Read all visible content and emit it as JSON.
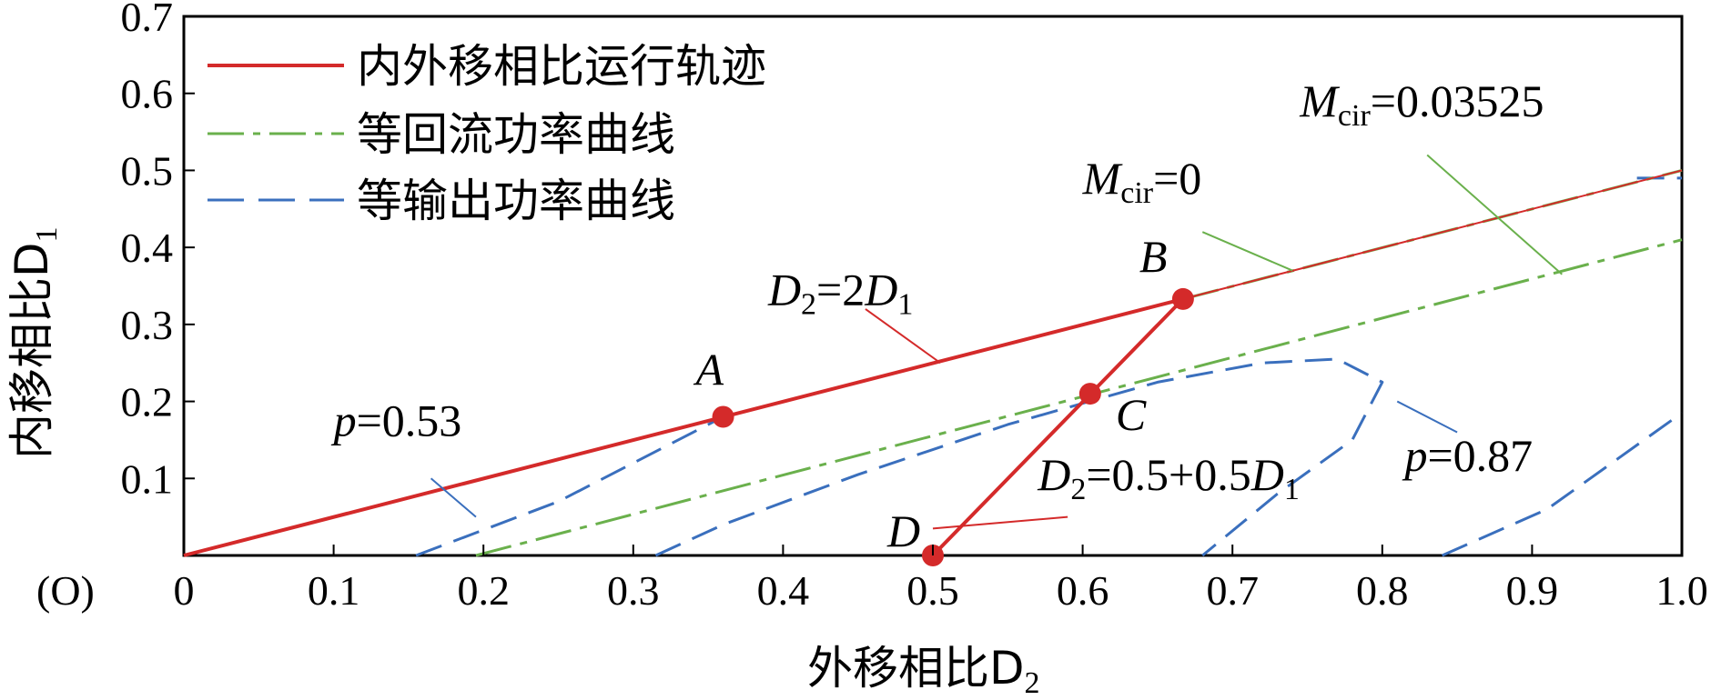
{
  "chart_data": {
    "type": "line",
    "title": "",
    "xlabel": "外移相比D",
    "xlabel_sub": "2",
    "ylabel": "内移相比D",
    "ylabel_sub": "1",
    "origin_label": "(O)",
    "xlim": [
      0,
      1.0
    ],
    "ylim": [
      0,
      0.7
    ],
    "grid": false,
    "legend_position": "top-left",
    "xticks": [
      {
        "value": 0,
        "label": "0"
      },
      {
        "value": 0.1,
        "label": "0.1"
      },
      {
        "value": 0.2,
        "label": "0.2"
      },
      {
        "value": 0.3,
        "label": "0.3"
      },
      {
        "value": 0.4,
        "label": "0.4"
      },
      {
        "value": 0.5,
        "label": "0.5"
      },
      {
        "value": 0.6,
        "label": "0.6"
      },
      {
        "value": 0.7,
        "label": "0.7"
      },
      {
        "value": 0.8,
        "label": "0.8"
      },
      {
        "value": 0.9,
        "label": "0.9"
      },
      {
        "value": 1.0,
        "label": "1.0"
      }
    ],
    "yticks": [
      {
        "value": 0.1,
        "label": "0.1"
      },
      {
        "value": 0.2,
        "label": "0.2"
      },
      {
        "value": 0.3,
        "label": "0.3"
      },
      {
        "value": 0.4,
        "label": "0.4"
      },
      {
        "value": 0.5,
        "label": "0.5"
      },
      {
        "value": 0.6,
        "label": "0.6"
      },
      {
        "value": 0.7,
        "label": "0.7"
      }
    ],
    "colors": {
      "red": "#d42a2a",
      "green": "#6ab04c",
      "blue": "#3a6fbd"
    },
    "legend": [
      {
        "label": "内外移相比运行轨迹",
        "style": "solid",
        "color": "#d42a2a"
      },
      {
        "label": "等回流功率曲线",
        "style": "dashdot",
        "color": "#6ab04c"
      },
      {
        "label": "等输出功率曲线",
        "style": "dashed",
        "color": "#3a6fbd"
      }
    ],
    "series": [
      {
        "name": "内外移相比运行轨迹",
        "style": "solid",
        "color": "#d42a2a",
        "width": 4,
        "points": [
          [
            0,
            0
          ],
          [
            0.667,
            0.333
          ],
          [
            0.5,
            0
          ]
        ]
      },
      {
        "name": "内外移相比运行轨迹",
        "style": "solid",
        "color": "#d42a2a",
        "width": 2,
        "points": [
          [
            0.667,
            0.333
          ],
          [
            1.0,
            0.5
          ]
        ]
      },
      {
        "name": "等回流功率曲线",
        "style": "dashdot",
        "color": "#6ab04c",
        "width": 3,
        "points": [
          [
            0.667,
            0.333
          ],
          [
            1.0,
            0.5
          ]
        ]
      },
      {
        "name": "等回流功率曲线",
        "style": "dashdot",
        "color": "#6ab04c",
        "width": 3,
        "points": [
          [
            0.195,
            0
          ],
          [
            1.0,
            0.41
          ]
        ]
      },
      {
        "name": "等输出功率曲线",
        "style": "dashed",
        "color": "#3a6fbd",
        "width": 3,
        "points": [
          [
            0.155,
            0
          ],
          [
            0.25,
            0.07
          ],
          [
            0.36,
            0.18
          ]
        ]
      },
      {
        "name": "等输出功率曲线",
        "style": "dashed",
        "color": "#3a6fbd",
        "width": 3,
        "points": [
          [
            0.315,
            0
          ],
          [
            0.36,
            0.04
          ],
          [
            0.45,
            0.105
          ],
          [
            0.55,
            0.17
          ],
          [
            0.65,
            0.225
          ],
          [
            0.72,
            0.25
          ],
          [
            0.77,
            0.255
          ],
          [
            0.8,
            0.225
          ],
          [
            0.78,
            0.15
          ],
          [
            0.73,
            0.08
          ],
          [
            0.68,
            0
          ]
        ]
      },
      {
        "name": "等输出功率曲线",
        "style": "dashed",
        "color": "#3a6fbd",
        "width": 3,
        "points": [
          [
            0.84,
            0
          ],
          [
            0.91,
            0.06
          ],
          [
            1.0,
            0.185
          ]
        ]
      },
      {
        "name": "等输出功率曲线",
        "style": "dashed",
        "color": "#3a6fbd",
        "width": 3,
        "points": [
          [
            0.97,
            0.49
          ],
          [
            1.0,
            0.49
          ]
        ]
      }
    ],
    "points": [
      {
        "label": "A",
        "x": 0.36,
        "y": 0.18
      },
      {
        "label": "B",
        "x": 0.667,
        "y": 0.333
      },
      {
        "label": "C",
        "x": 0.605,
        "y": 0.21
      },
      {
        "label": "D",
        "x": 0.5,
        "y": 0.0
      }
    ],
    "annotations": [
      {
        "id": "d2-2d1",
        "parts": [
          [
            "i",
            "D"
          ],
          [
            "s",
            "2"
          ],
          [
            "t",
            "=2"
          ],
          [
            "i",
            "D"
          ],
          [
            "s",
            "1"
          ]
        ],
        "text_at": [
          0.39,
          0.325
        ],
        "leader": [
          [
            0.455,
            0.32
          ],
          [
            0.505,
            0.25
          ]
        ]
      },
      {
        "id": "p053",
        "parts": [
          [
            "i",
            "p"
          ],
          [
            "t",
            "=0.53"
          ]
        ],
        "text_at": [
          0.1,
          0.155
        ],
        "leader": [
          [
            0.165,
            0.1
          ],
          [
            0.195,
            0.05
          ]
        ]
      },
      {
        "id": "mcir0",
        "parts": [
          [
            "i",
            "M"
          ],
          [
            "s",
            "cir"
          ],
          [
            "t",
            "=0"
          ]
        ],
        "text_at": [
          0.6,
          0.47
        ],
        "leader": [
          [
            0.68,
            0.42
          ],
          [
            0.74,
            0.37
          ]
        ]
      },
      {
        "id": "mcir03525",
        "parts": [
          [
            "i",
            "M"
          ],
          [
            "s",
            "cir"
          ],
          [
            "t",
            "=0.03525"
          ]
        ],
        "text_at": [
          0.745,
          0.57
        ],
        "leader": [
          [
            0.83,
            0.52
          ],
          [
            0.92,
            0.365
          ]
        ]
      },
      {
        "id": "p087",
        "parts": [
          [
            "i",
            "p"
          ],
          [
            "t",
            "=0.87"
          ]
        ],
        "text_at": [
          0.815,
          0.11
        ],
        "leader": [
          [
            0.85,
            0.16
          ],
          [
            0.81,
            0.2
          ]
        ]
      },
      {
        "id": "d2-05",
        "parts": [
          [
            "i",
            "D"
          ],
          [
            "s",
            "2"
          ],
          [
            "t",
            "=0.5+0.5"
          ],
          [
            "i",
            "D"
          ],
          [
            "s",
            "1"
          ]
        ],
        "text_at": [
          0.57,
          0.085
        ],
        "leader": [
          [
            0.59,
            0.05
          ],
          [
            0.5,
            0.035
          ]
        ]
      }
    ]
  }
}
